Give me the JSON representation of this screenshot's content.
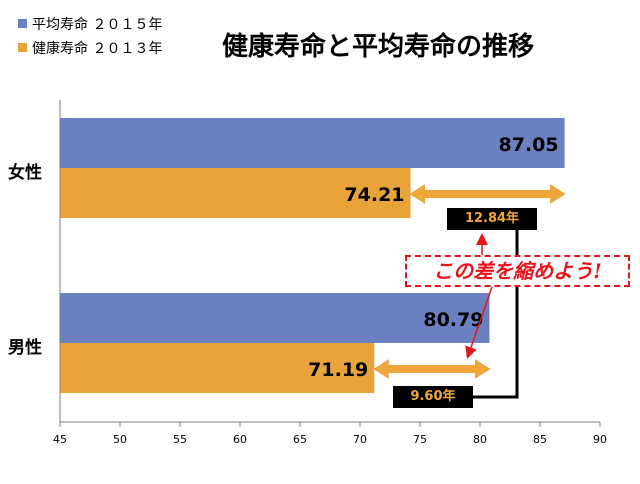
{
  "title": "健康寿命と平均寿命の推移",
  "legend": [
    {
      "label": "平均寿命 ２０１５年",
      "color": "#6a80c0"
    },
    {
      "label": "健康寿命 ２０１３年",
      "color": "#e9a33b"
    }
  ],
  "annotations": {
    "callout": "この差を縮めよう!",
    "female_gap": "12.84年",
    "male_gap": "9.60年"
  },
  "chart_data": {
    "type": "bar",
    "orientation": "horizontal",
    "categories": [
      "女性",
      "男性"
    ],
    "series": [
      {
        "name": "平均寿命 ２０１５年",
        "values": [
          87.05,
          80.79
        ],
        "labels": [
          "87.05",
          "80.79"
        ],
        "color": "#6a80c0"
      },
      {
        "name": "健康寿命 ２０１３年",
        "values": [
          74.21,
          71.19
        ],
        "labels": [
          "74.21",
          "71.19"
        ],
        "color": "#e9a33b"
      }
    ],
    "xlim": [
      45,
      90
    ],
    "xticks": [
      "45",
      "50",
      "55",
      "60",
      "65",
      "70",
      "75",
      "80",
      "85",
      "90"
    ],
    "grid": false,
    "legend_position": "top-left"
  }
}
